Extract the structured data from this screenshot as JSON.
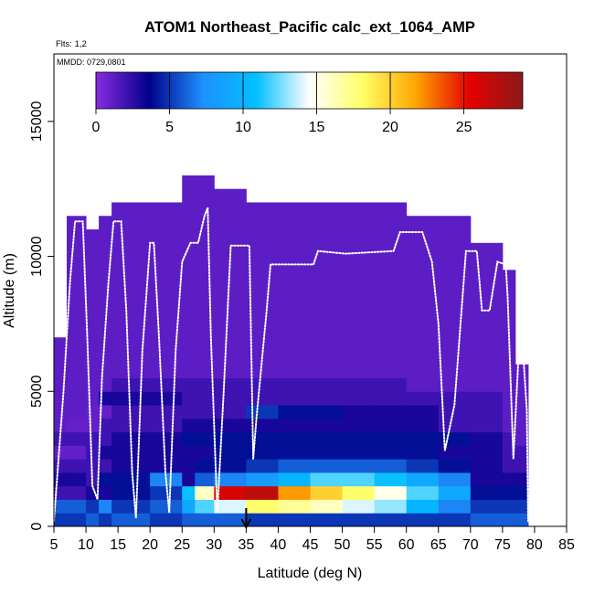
{
  "chart_data": {
    "type": "heatmap",
    "title": "ATOM1 Northeast_Pacific calc_ext_1064_AMP",
    "flights_label": "Flts: 1,2",
    "date_label": "MMDD: 0729,0801",
    "xlabel": "Latitude (deg N)",
    "ylabel": "Altitude (m)",
    "xlim": [
      5,
      85
    ],
    "ylim": [
      0,
      17500
    ],
    "x_ticks": [
      "5",
      "10",
      "15",
      "20",
      "25",
      "30",
      "35",
      "40",
      "45",
      "50",
      "55",
      "60",
      "65",
      "70",
      "75",
      "80",
      "85"
    ],
    "y_ticks": [
      "0",
      "5000",
      "10000",
      "15000"
    ],
    "colorbar": {
      "range": [
        0,
        29
      ],
      "ticks": [
        "0",
        "5",
        "10",
        "15",
        "20",
        "25"
      ],
      "colors": [
        "#8a2be2",
        "#00008b",
        "#1e90ff",
        "#00bfff",
        "#ffffff",
        "#ffff66",
        "#ffa500",
        "#e60000",
        "#8b1a1a"
      ]
    },
    "arrow_marker_latitude": 35,
    "altitude_bins_m": [
      250,
      750,
      1250,
      1750,
      2250,
      2750,
      3250,
      3750,
      4250,
      4750,
      5250,
      5750,
      6250,
      6750,
      7250,
      7750,
      8250,
      8750,
      9250,
      9750,
      10250,
      10750,
      11250,
      11750,
      12250,
      12750
    ],
    "columns": [
      {
        "lat_range": [
          5,
          6
        ],
        "max_alt": 7000,
        "values": {
          "0": 5,
          "1": 6,
          "2": 2,
          "3": 3,
          "4": 2,
          "5": 1,
          "6": 2
        }
      },
      {
        "lat_range": [
          6,
          7
        ],
        "max_alt": 7000,
        "values": {
          "0": 5,
          "1": 6,
          "2": 2,
          "3": 3,
          "4": 2,
          "5": 1,
          "6": 2
        }
      },
      {
        "lat_range": [
          7,
          10
        ],
        "max_alt": 11500,
        "values": {
          "0": 5,
          "1": 6,
          "2": 2,
          "3": 3,
          "4": 2,
          "5": 1,
          "6": 2,
          "7": 1
        }
      },
      {
        "lat_range": [
          10,
          12
        ],
        "max_alt": 11000,
        "values": {
          "0": 6,
          "1": 5,
          "2": 3,
          "3": 2,
          "4": 2,
          "5": 2,
          "6": 2,
          "7": 1,
          "8": 1
        }
      },
      {
        "lat_range": [
          12,
          14
        ],
        "max_alt": 11500,
        "values": {
          "0": 5,
          "1": 7,
          "2": 3,
          "3": 4,
          "4": 2,
          "5": 3,
          "6": 2,
          "7": 2,
          "8": 1,
          "9": 3
        }
      },
      {
        "lat_range": [
          14,
          20
        ],
        "max_alt": 12000,
        "values": {
          "0": 6,
          "1": 5,
          "2": 4,
          "3": 4,
          "4": 3,
          "5": 3,
          "6": 3,
          "7": 2,
          "8": 2,
          "9": 3,
          "10": 2
        }
      },
      {
        "lat_range": [
          20,
          25
        ],
        "max_alt": 12000,
        "values": {
          "0": 5,
          "1": 6,
          "2": 5,
          "3": 7,
          "4": 3,
          "5": 3,
          "6": 3,
          "7": 2,
          "8": 2,
          "9": 3,
          "10": 2
        }
      },
      {
        "lat_range": [
          25,
          27
        ],
        "max_alt": 13000,
        "values": {
          "0": 6,
          "1": 9,
          "2": 11,
          "3": 3,
          "4": 3,
          "5": 3,
          "6": 4,
          "7": 3,
          "8": 2,
          "9": 2,
          "10": 2
        }
      },
      {
        "lat_range": [
          27,
          30
        ],
        "max_alt": 13000,
        "values": {
          "0": 6,
          "1": 12,
          "2": 16,
          "3": 6,
          "4": 4,
          "5": 3,
          "6": 4,
          "7": 3,
          "8": 2,
          "9": 2,
          "10": 2
        }
      },
      {
        "lat_range": [
          30,
          35
        ],
        "max_alt": 12500,
        "values": {
          "0": 6,
          "1": 14,
          "2": 26,
          "3": 7,
          "4": 4,
          "5": 4,
          "6": 4,
          "7": 3,
          "8": 2,
          "9": 2,
          "10": 2
        }
      },
      {
        "lat_range": [
          35,
          40
        ],
        "max_alt": 12000,
        "values": {
          "0": 5,
          "1": 18,
          "2": 27,
          "3": 8,
          "4": 5,
          "5": 4,
          "6": 4,
          "7": 3,
          "8": 5,
          "9": 2,
          "10": 2
        }
      },
      {
        "lat_range": [
          40,
          45
        ],
        "max_alt": 12000,
        "values": {
          "0": 5,
          "1": 17,
          "2": 22,
          "3": 10,
          "4": 6,
          "5": 4,
          "6": 4,
          "7": 3,
          "8": 4,
          "9": 2,
          "10": 2
        }
      },
      {
        "lat_range": [
          45,
          50
        ],
        "max_alt": 12000,
        "values": {
          "0": 5,
          "1": 16,
          "2": 20,
          "3": 12,
          "4": 6,
          "5": 4,
          "6": 4,
          "7": 3,
          "8": 4,
          "9": 2,
          "10": 2
        }
      },
      {
        "lat_range": [
          50,
          55
        ],
        "max_alt": 12000,
        "values": {
          "0": 5,
          "1": 14,
          "2": 18,
          "3": 12,
          "4": 6,
          "5": 4,
          "6": 4,
          "7": 3,
          "8": 3,
          "9": 2,
          "10": 2
        }
      },
      {
        "lat_range": [
          55,
          60
        ],
        "max_alt": 12000,
        "values": {
          "0": 5,
          "1": 13,
          "2": 15,
          "3": 11,
          "4": 6,
          "5": 4,
          "6": 4,
          "7": 3,
          "8": 3,
          "9": 2,
          "10": 2
        }
      },
      {
        "lat_range": [
          60,
          65
        ],
        "max_alt": 11500,
        "values": {
          "0": 5,
          "1": 10,
          "2": 12,
          "3": 9,
          "4": 5,
          "5": 4,
          "6": 4,
          "7": 3,
          "8": 3,
          "9": 2
        }
      },
      {
        "lat_range": [
          65,
          70
        ],
        "max_alt": 11500,
        "values": {
          "0": 5,
          "1": 7,
          "2": 9,
          "3": 7,
          "4": 4,
          "5": 3,
          "6": 4,
          "7": 2,
          "8": 2,
          "9": 2
        }
      },
      {
        "lat_range": [
          70,
          75
        ],
        "max_alt": 10500,
        "values": {
          "0": 6,
          "1": 5,
          "2": 4,
          "3": 3,
          "4": 3,
          "5": 3,
          "6": 3,
          "7": 2,
          "8": 2,
          "9": 2
        }
      },
      {
        "lat_range": [
          75,
          77
        ],
        "max_alt": 9500,
        "values": {
          "0": 6,
          "1": 5,
          "2": 4,
          "3": 3,
          "4": 2,
          "5": 2,
          "6": 2
        }
      },
      {
        "lat_range": [
          77,
          79
        ],
        "max_alt": 6000,
        "values": {
          "0": 6,
          "1": 5,
          "2": 4,
          "3": 3,
          "4": 2,
          "5": 2
        }
      }
    ],
    "flight_track": [
      [
        5,
        200
      ],
      [
        6.5,
        5000
      ],
      [
        7.5,
        9000
      ],
      [
        8.3,
        11300
      ],
      [
        9.5,
        11300
      ],
      [
        10.2,
        7000
      ],
      [
        11,
        1500
      ],
      [
        11.8,
        1000
      ],
      [
        12.5,
        5500
      ],
      [
        13.5,
        9000
      ],
      [
        14.3,
        11300
      ],
      [
        15.5,
        11300
      ],
      [
        16.3,
        8000
      ],
      [
        17.2,
        2000
      ],
      [
        17.8,
        300
      ],
      [
        18.8,
        6500
      ],
      [
        20,
        10500
      ],
      [
        20.6,
        10500
      ],
      [
        21.4,
        7000
      ],
      [
        22.4,
        2000
      ],
      [
        23,
        500
      ],
      [
        24,
        6500
      ],
      [
        25,
        9800
      ],
      [
        26.3,
        10500
      ],
      [
        27.5,
        10500
      ],
      [
        28.5,
        11500
      ],
      [
        29,
        11800
      ],
      [
        29.5,
        7000
      ],
      [
        30.5,
        500
      ],
      [
        31.5,
        5000
      ],
      [
        32.6,
        10400
      ],
      [
        35.5,
        10400
      ],
      [
        36.1,
        2500
      ],
      [
        36.6,
        4000
      ],
      [
        38.2,
        8000
      ],
      [
        38.8,
        9700
      ],
      [
        45.5,
        9700
      ],
      [
        46.2,
        10200
      ],
      [
        50.5,
        10100
      ],
      [
        58,
        10200
      ],
      [
        59,
        10900
      ],
      [
        62.5,
        10900
      ],
      [
        64,
        9800
      ],
      [
        65,
        7500
      ],
      [
        66,
        2800
      ],
      [
        67.5,
        4500
      ],
      [
        69.3,
        10200
      ],
      [
        71,
        10200
      ],
      [
        71.8,
        8000
      ],
      [
        73,
        8000
      ],
      [
        74.2,
        9800
      ],
      [
        75.5,
        9700
      ],
      [
        75.8,
        8500
      ],
      [
        76.7,
        2500
      ],
      [
        77.5,
        6300
      ],
      [
        78.2,
        6500
      ],
      [
        78.8,
        4300
      ],
      [
        79,
        200
      ]
    ]
  }
}
